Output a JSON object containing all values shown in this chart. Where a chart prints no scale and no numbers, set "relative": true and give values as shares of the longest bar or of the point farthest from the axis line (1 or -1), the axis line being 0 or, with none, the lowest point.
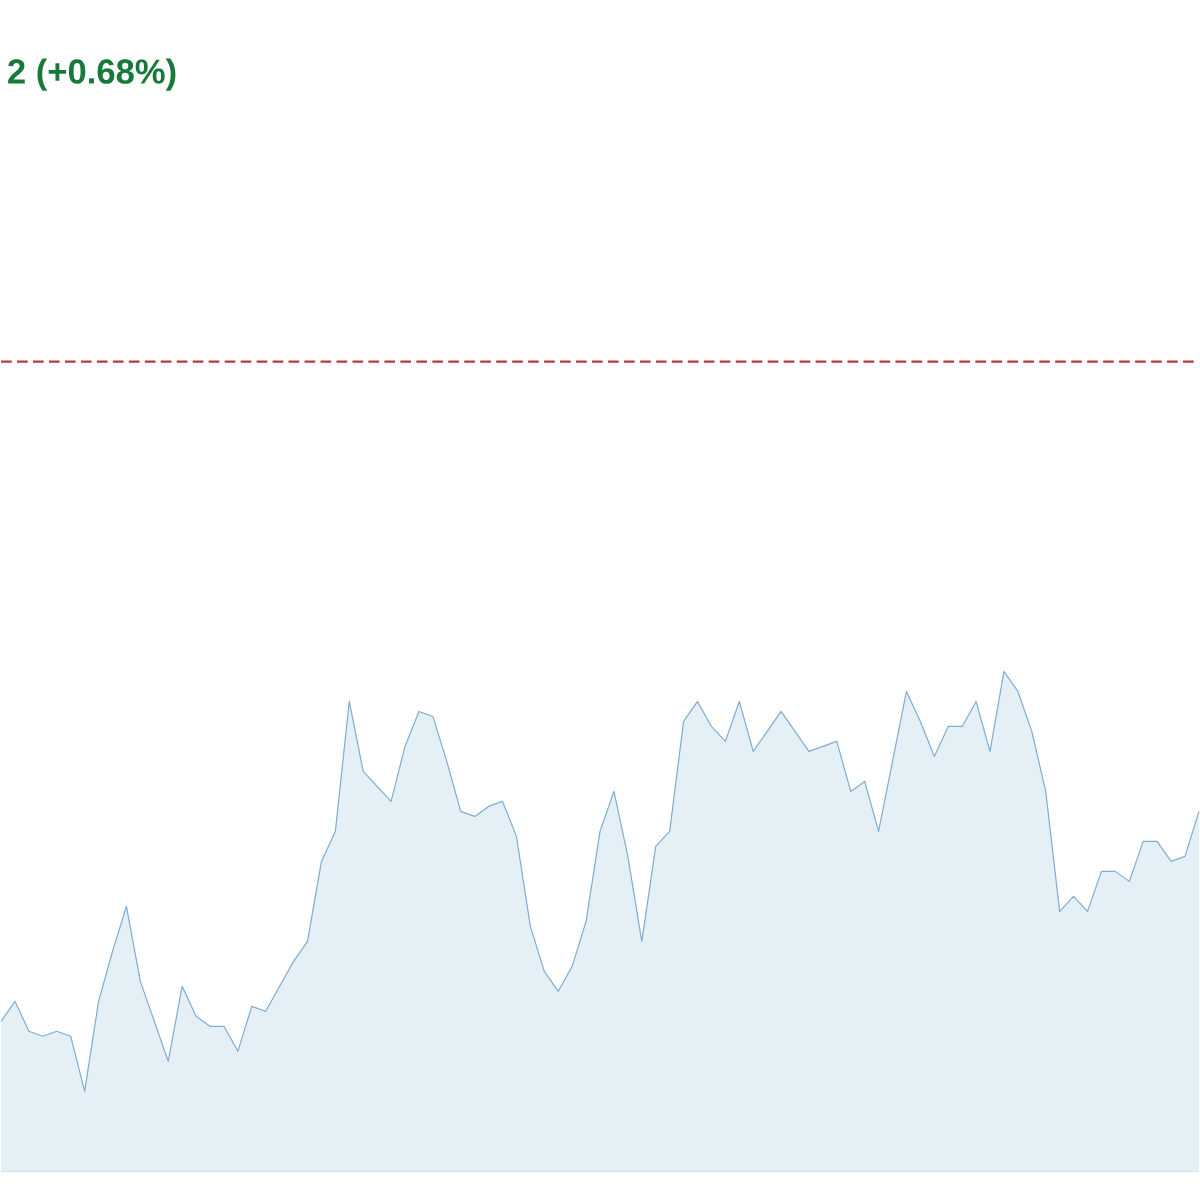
{
  "chart_data": {
    "type": "area",
    "title": "2 (+0.68%)",
    "relative": true,
    "categories": [
      null,
      null,
      null,
      null,
      null,
      null,
      null,
      null,
      null,
      null,
      null,
      null,
      null,
      null,
      null,
      null,
      null,
      null,
      null,
      null,
      null,
      null,
      null,
      null,
      null,
      null,
      null,
      null,
      null,
      null,
      null,
      null,
      null,
      null,
      null,
      null,
      null,
      null,
      null,
      null,
      null,
      null,
      null,
      null,
      null,
      null,
      null,
      null,
      null,
      null,
      null,
      null,
      null,
      null,
      null,
      null,
      null,
      null,
      null,
      null,
      null,
      null,
      null,
      null,
      null,
      null,
      null,
      null,
      null,
      null,
      null,
      null,
      null,
      null,
      null,
      null,
      null,
      null,
      null,
      null,
      null,
      null,
      null,
      null,
      null,
      null,
      null
    ],
    "series": [
      {
        "color": "#7dadd4",
        "values": [
          0.3,
          0.34,
          0.28,
          0.27,
          0.28,
          0.27,
          0.16,
          0.34,
          0.44,
          0.53,
          0.38,
          0.3,
          0.22,
          0.37,
          0.31,
          0.29,
          0.29,
          0.24,
          0.33,
          0.32,
          0.37,
          0.42,
          0.46,
          0.62,
          0.68,
          0.94,
          0.8,
          0.77,
          0.74,
          0.85,
          0.92,
          0.91,
          0.82,
          0.72,
          0.71,
          0.73,
          0.74,
          0.67,
          0.49,
          0.4,
          0.36,
          0.41,
          0.5,
          0.68,
          0.76,
          0.63,
          0.46,
          0.65,
          0.68,
          0.9,
          0.94,
          0.89,
          0.86,
          0.94,
          0.84,
          0.88,
          0.92,
          0.88,
          0.84,
          0.85,
          0.86,
          0.76,
          0.78,
          0.68,
          0.82,
          0.96,
          0.9,
          0.83,
          0.89,
          0.89,
          0.94,
          0.84,
          1.0,
          0.96,
          0.88,
          0.76,
          0.52,
          0.55,
          0.52,
          0.6,
          0.6,
          0.58,
          0.66,
          0.66,
          0.62,
          0.63,
          0.72
        ]
      }
    ],
    "ref_lines": [
      {
        "axis": "y",
        "value": 1.62,
        "color": "#b83a3a",
        "line_style": "dashed"
      }
    ]
  }
}
